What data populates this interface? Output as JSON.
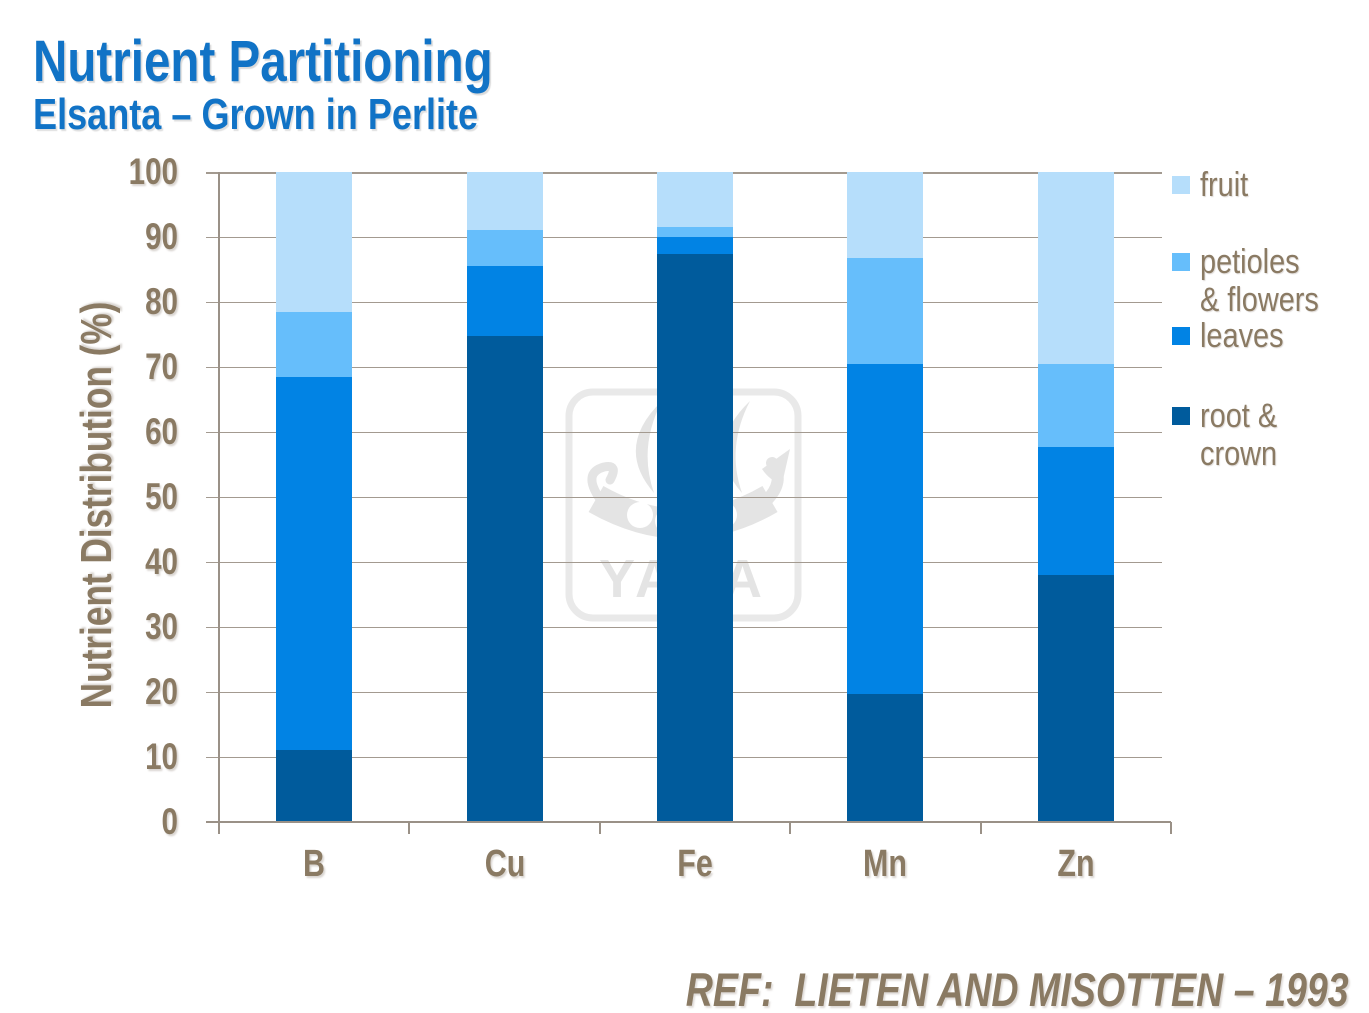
{
  "header": {
    "title": "Nutrient Partitioning",
    "subtitle": "Elsanta – Grown in Perlite"
  },
  "footer": {
    "reference": "REF:  LIETEN AND MISOTTEN – 1993"
  },
  "watermark": {
    "brand": "YARA"
  },
  "palette": {
    "title_blue": "#1173C6",
    "text_brown": "#8A7A63",
    "gridline": "#A39A90",
    "axis": "#9A9187",
    "watermark_gray": "#E4E4E4"
  },
  "chart_data": {
    "type": "bar",
    "stacked": true,
    "title": "Nutrient Partitioning",
    "subtitle": "Elsanta – Grown in Perlite",
    "ylabel": "Nutrient Distribution (%)",
    "xlabel": "",
    "categories": [
      "B",
      "Cu",
      "Fe",
      "Mn",
      "Zn"
    ],
    "series": [
      {
        "name": "root & crown",
        "color": "#005B9C",
        "values": [
          11,
          74.7,
          87.4,
          19.7,
          38
        ]
      },
      {
        "name": "leaves",
        "color": "#0183E4",
        "values": [
          57.5,
          10.8,
          2.6,
          50.7,
          19.6
        ]
      },
      {
        "name": "petioles & flowers",
        "color": "#66BEFB",
        "values": [
          10,
          5.5,
          1.6,
          16.3,
          12.8
        ]
      },
      {
        "name": "fruit",
        "color": "#B6DEFB",
        "values": [
          21.5,
          9,
          8.4,
          13.3,
          29.6
        ]
      }
    ],
    "ylim": [
      0,
      100
    ],
    "yticks": [
      0,
      10,
      20,
      30,
      40,
      50,
      60,
      70,
      80,
      90,
      100
    ],
    "grid": true,
    "legend_position": "right",
    "legend": [
      {
        "lines": [
          "fruit"
        ],
        "color": "#B6DEFB"
      },
      {
        "lines": [
          "petioles",
          "& flowers"
        ],
        "color": "#66BEFB"
      },
      {
        "lines": [
          "leaves"
        ],
        "color": "#0183E4"
      },
      {
        "lines": [
          "root &",
          "crown"
        ],
        "color": "#005B9C"
      }
    ]
  }
}
